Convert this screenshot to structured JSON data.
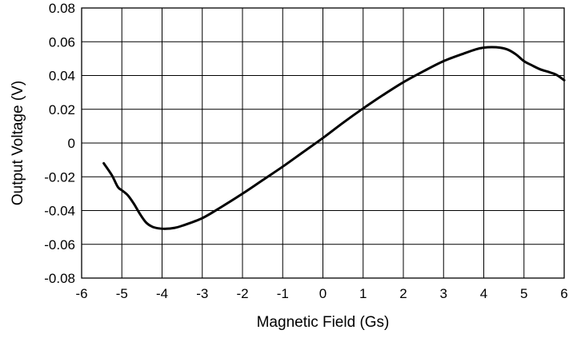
{
  "chart_data": {
    "type": "line",
    "xlabel": "Magnetic Field (Gs)",
    "ylabel": "Output Voltage (V)",
    "xlim": [
      -6,
      6
    ],
    "ylim": [
      -0.08,
      0.08
    ],
    "x_ticks": [
      -6,
      -5,
      -4,
      -3,
      -2,
      -1,
      0,
      1,
      2,
      3,
      4,
      5,
      6
    ],
    "x_tick_labels": [
      "-6",
      "-5",
      "-4",
      "-3",
      "-2",
      "-1",
      "0",
      "1",
      "2",
      "3",
      "4",
      "5",
      "6"
    ],
    "y_ticks": [
      0.08,
      0.06,
      0.04,
      0.02,
      0,
      -0.02,
      -0.04,
      -0.06,
      -0.08
    ],
    "y_tick_labels": [
      "0.08",
      "0.06",
      "0.04",
      "0.02",
      "0",
      "-0.02",
      "-0.04",
      "-0.06",
      "-0.08"
    ],
    "grid": true,
    "legend": false,
    "series": [
      {
        "color": "#000000",
        "x": [
          -5.45,
          -5.25,
          -5.1,
          -5.0,
          -4.85,
          -4.7,
          -4.55,
          -4.4,
          -4.25,
          -4.1,
          -3.9,
          -3.7,
          -3.5,
          -3.0,
          -2.5,
          -2.0,
          -1.5,
          -1.0,
          -0.5,
          0.0,
          0.5,
          1.0,
          1.5,
          2.0,
          2.5,
          3.0,
          3.5,
          3.8,
          4.0,
          4.2,
          4.4,
          4.6,
          4.8,
          5.0,
          5.2,
          5.4,
          5.6,
          5.8,
          6.0
        ],
        "values": [
          -0.012,
          -0.019,
          -0.026,
          -0.028,
          -0.031,
          -0.036,
          -0.042,
          -0.047,
          -0.0495,
          -0.0505,
          -0.0508,
          -0.0503,
          -0.049,
          -0.0445,
          -0.0375,
          -0.03,
          -0.022,
          -0.014,
          -0.0055,
          0.003,
          0.012,
          0.0205,
          0.0285,
          0.036,
          0.0425,
          0.0485,
          0.053,
          0.0555,
          0.0565,
          0.0568,
          0.0565,
          0.0553,
          0.0525,
          0.0485,
          0.046,
          0.0437,
          0.0422,
          0.0405,
          0.0372
        ]
      }
    ]
  }
}
